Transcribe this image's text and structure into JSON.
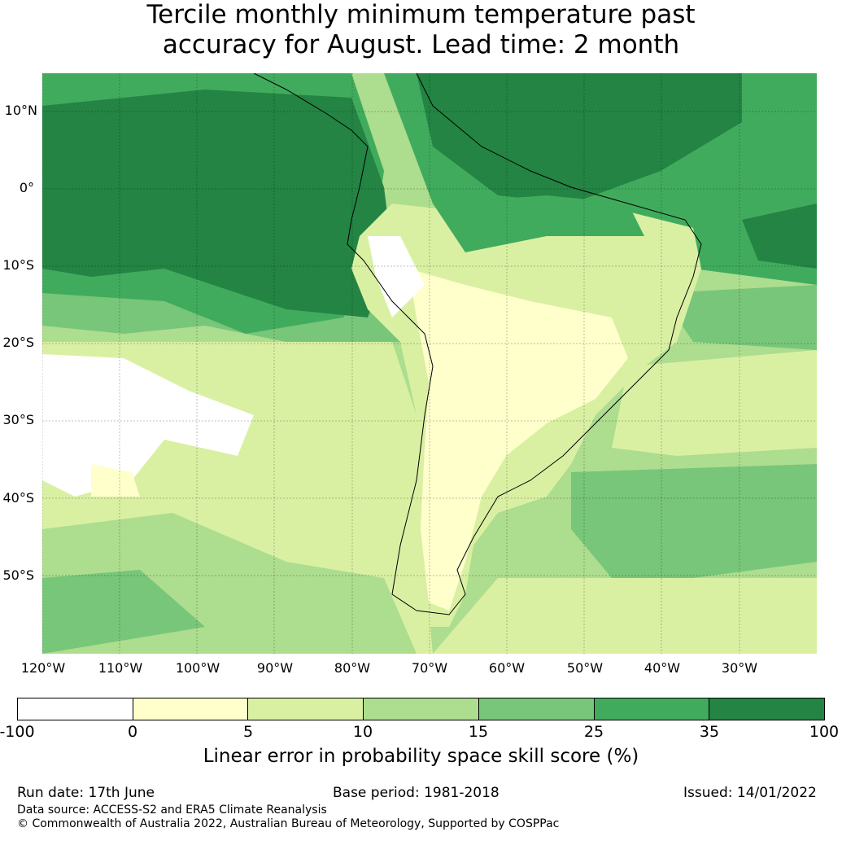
{
  "title": {
    "line1": "Tercile monthly minimum temperature past",
    "line2": "accuracy for August. Lead time: 2 month"
  },
  "map": {
    "lat_labels": [
      "10°N",
      "0°",
      "10°S",
      "20°S",
      "30°S",
      "40°S",
      "50°S"
    ],
    "lon_labels": [
      "120°W",
      "110°W",
      "100°W",
      "90°W",
      "80°W",
      "70°W",
      "60°W",
      "50°W",
      "40°W",
      "30°W"
    ],
    "colors": {
      "lt0": "#ffffff",
      "c0_5": "#ffffcc",
      "c5_10": "#d9f0a3",
      "c10_15": "#addd8e",
      "c15_25": "#78c679",
      "c25_35": "#41ab5d",
      "c35_100": "#238443"
    }
  },
  "colorbar": {
    "ticks": [
      "-100",
      "0",
      "5",
      "10",
      "15",
      "25",
      "35",
      "100"
    ],
    "label": "Linear error in probability space skill score (%)",
    "colors": [
      "#ffffff",
      "#ffffcc",
      "#d9f0a3",
      "#addd8e",
      "#78c679",
      "#41ab5d",
      "#238443"
    ]
  },
  "footer": {
    "run_date": "Run date: 17th June",
    "base_period": "Base period: 1981-2018",
    "issued": "Issued: 14/01/2022",
    "data_source": "Data source: ACCESS-S2 and ERA5 Climate Reanalysis",
    "copyright": "© Commonwealth of Australia 2022, Australian Bureau of Meteorology, Supported by COSPPac"
  }
}
